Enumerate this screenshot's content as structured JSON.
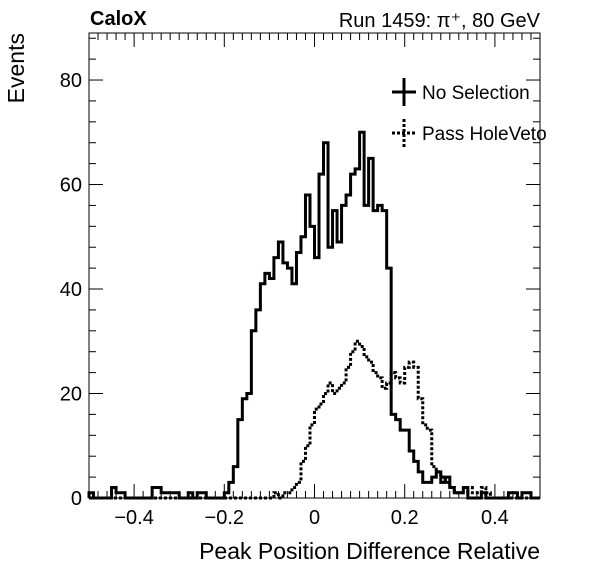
{
  "header": {
    "left": "CaloX",
    "right": "Run 1459: π⁺, 80 GeV"
  },
  "chart_data": {
    "type": "histogram",
    "title": "",
    "xlabel": "Peak Position Difference Relative",
    "ylabel": "Events",
    "xlim": [
      -0.5,
      0.5
    ],
    "ylim": [
      0,
      89
    ],
    "xticks": [
      -0.4,
      -0.2,
      0,
      0.2,
      0.4
    ],
    "xtick_labels": [
      "−0.4",
      "−0.2",
      "0",
      "0.2",
      "0.4"
    ],
    "yticks": [
      0,
      20,
      40,
      60,
      80
    ],
    "ytick_labels": [
      "0",
      "20",
      "40",
      "60",
      "80"
    ],
    "grid": false,
    "legend_position": "top-right",
    "bins": {
      "low": -0.5,
      "high": 0.5,
      "count": 100
    },
    "series": [
      {
        "name": "No Selection",
        "style": "solid",
        "color": "#000000",
        "values": [
          1,
          0,
          0,
          0,
          0,
          2,
          1,
          1,
          0,
          0,
          0,
          0,
          0,
          0,
          2,
          2,
          1,
          1,
          1,
          1,
          0,
          0,
          1,
          0,
          1,
          1,
          0,
          0,
          0,
          0,
          1,
          3,
          6,
          15,
          19,
          20,
          32,
          36,
          41,
          43,
          42,
          46,
          49,
          45,
          44,
          41,
          47,
          50,
          58,
          52,
          46,
          62,
          68,
          48,
          55,
          49,
          56,
          58,
          62,
          63,
          70,
          56,
          65,
          55,
          56,
          55,
          44,
          16,
          15,
          13,
          13,
          9,
          7,
          5,
          3,
          3,
          4,
          5,
          3,
          4,
          2,
          1,
          1,
          2,
          0,
          0,
          0,
          1,
          0,
          0,
          0,
          0,
          0,
          1,
          1,
          0,
          1,
          1,
          0,
          0
        ]
      },
      {
        "name": "Pass HoleVeto",
        "style": "dotted",
        "color": "#000000",
        "values": [
          0,
          0,
          0,
          0,
          0,
          0,
          0,
          0,
          0,
          0,
          0,
          0,
          0,
          0,
          0,
          0,
          0,
          0,
          0,
          0,
          0,
          0,
          0,
          0,
          0,
          0,
          0,
          0,
          0,
          0,
          0,
          0,
          0,
          0,
          0,
          0,
          0,
          0,
          0,
          0,
          0,
          1,
          0,
          1,
          1,
          2,
          3,
          7,
          10,
          14,
          17,
          18,
          20,
          22,
          20,
          21,
          22,
          25,
          28,
          30,
          29,
          27,
          26,
          24,
          23,
          21,
          22,
          24,
          23,
          22,
          25,
          26,
          25,
          19,
          14,
          13,
          6,
          5,
          4,
          3,
          2,
          1,
          1,
          1,
          2,
          1,
          1,
          2,
          1,
          0,
          0,
          0,
          0,
          0,
          0,
          0,
          0,
          0,
          0,
          0
        ]
      }
    ]
  }
}
